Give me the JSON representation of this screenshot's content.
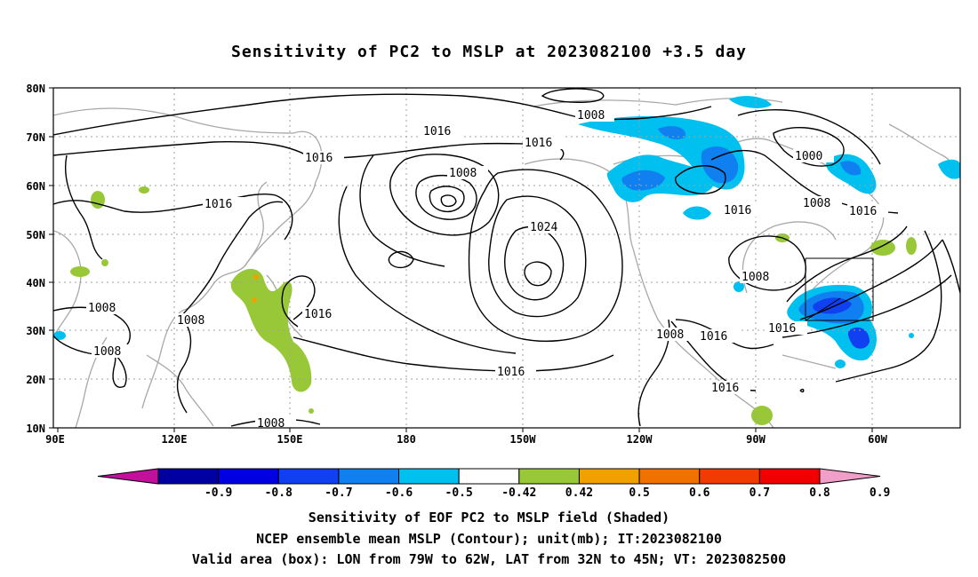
{
  "title": "Sensitivity of PC2 to MSLP at 2023082100 +3.5 day",
  "lat_labels": [
    "80N",
    "70N",
    "60N",
    "50N",
    "40N",
    "30N",
    "20N",
    "10N"
  ],
  "lon_labels": [
    "90E",
    "120E",
    "150E",
    "180",
    "150W",
    "120W",
    "90W",
    "60W"
  ],
  "contour_labels": [
    "1008",
    "1016",
    "1016",
    "1016",
    "1008",
    "1024",
    "1016",
    "1000",
    "1008",
    "1016",
    "1016",
    "1016",
    "1016",
    "1016",
    "1008",
    "1008",
    "1008",
    "1008",
    "1008",
    "1016",
    "1008"
  ],
  "colorbar": {
    "ticks": [
      "-0.9",
      "-0.8",
      "-0.7",
      "-0.6",
      "-0.5",
      "-0.42",
      "0.42",
      "0.5",
      "0.6",
      "0.7",
      "0.8",
      "0.9"
    ],
    "colors": [
      "#c0109c",
      "#0000a0",
      "#0000e0",
      "#1040f0",
      "#1080f0",
      "#00c0f0",
      "#ffffff",
      "#98c838",
      "#f0a000",
      "#f07000",
      "#f03c00",
      "#f00000",
      "#f0a0c8"
    ]
  },
  "valid_box": {
    "lon_west": 79,
    "lon_east": 62,
    "lat_south": 32,
    "lat_north": 45
  },
  "captions": {
    "line1": "Sensitivity of EOF PC2 to MSLP field (Shaded)",
    "line2": "NCEP ensemble mean MSLP (Contour); unit(mb); IT:2023082100",
    "line3": "Valid area (box): LON from 79W to 62W, LAT from 32N to 45N; VT: 2023082500"
  }
}
